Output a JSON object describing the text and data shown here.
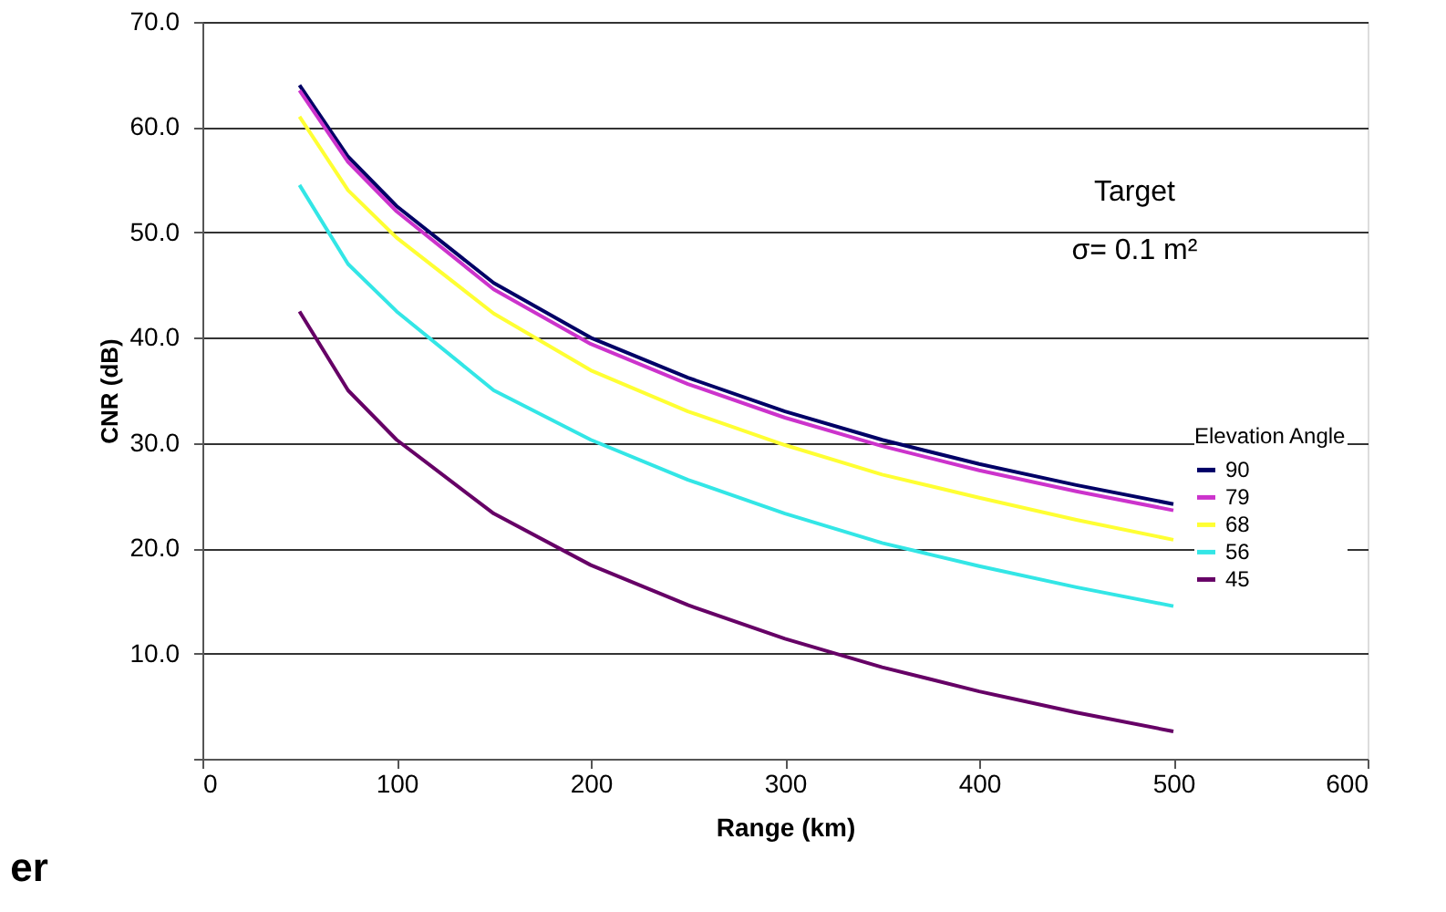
{
  "chart_data": {
    "type": "line",
    "x": [
      50,
      75,
      100,
      150,
      200,
      250,
      300,
      350,
      400,
      450,
      500
    ],
    "xlabel": "Range (km)",
    "ylabel": "CNR (dB)",
    "xlim": [
      0,
      600
    ],
    "xticks": [
      0,
      100,
      200,
      300,
      400,
      500,
      600
    ],
    "ylim": [
      0,
      70
    ],
    "yticks": [
      {
        "value": 0,
        "label": null
      },
      {
        "value": 10,
        "label": "10.0"
      },
      {
        "value": 20,
        "label": "20.0"
      },
      {
        "value": 30,
        "label": "30.0"
      },
      {
        "value": 40,
        "label": "40.0"
      },
      {
        "value": 50,
        "label": "50.0"
      },
      {
        "value": 60,
        "label": "60.0"
      },
      {
        "value": 70,
        "label": "70.0"
      }
    ],
    "grid": "y",
    "legend": "right",
    "legend_title": "Elevation Angle",
    "marker": "none",
    "line_style": "solid",
    "series": [
      {
        "name": "90",
        "color": "#000066",
        "values": [
          64.0,
          57.2,
          52.5,
          45.2,
          40.0,
          36.2,
          33.0,
          30.3,
          28.0,
          26.0,
          24.2
        ]
      },
      {
        "name": "79",
        "color": "#cc33cc",
        "values": [
          63.5,
          56.7,
          52.0,
          44.6,
          39.4,
          35.6,
          32.4,
          29.7,
          27.4,
          25.4,
          23.6
        ]
      },
      {
        "name": "68",
        "color": "#ffff33",
        "values": [
          61.0,
          54.0,
          49.5,
          42.3,
          36.9,
          33.0,
          29.8,
          27.0,
          24.8,
          22.7,
          20.8
        ]
      },
      {
        "name": "56",
        "color": "#33e6e6",
        "values": [
          54.5,
          47.0,
          42.5,
          35.0,
          30.3,
          26.5,
          23.3,
          20.5,
          18.3,
          16.3,
          14.5
        ]
      },
      {
        "name": "45",
        "color": "#660066",
        "values": [
          42.5,
          35.0,
          30.3,
          23.3,
          18.4,
          14.6,
          11.4,
          8.7,
          6.4,
          4.4,
          2.6
        ]
      }
    ],
    "annotations": [
      "Target",
      "σ= 0.1 m²",
      "er"
    ]
  }
}
